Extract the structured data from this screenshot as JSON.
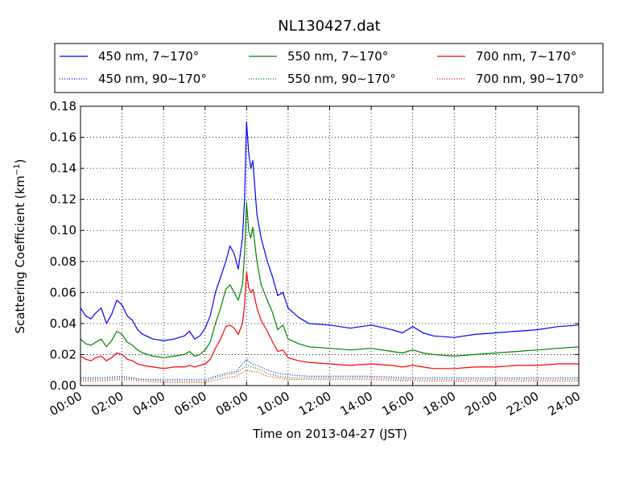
{
  "chart_data": {
    "type": "line",
    "title": "NL130427.dat",
    "xlabel": "Time on 2013-04-27 (JST)",
    "ylabel_main": "Scattering Coefficient (km",
    "ylabel_sup": "−1",
    "ylabel_end": ")",
    "xlim": [
      0,
      24
    ],
    "ylim": [
      0,
      0.18
    ],
    "x_ticks": [
      0,
      2,
      4,
      6,
      8,
      10,
      12,
      14,
      16,
      18,
      20,
      22,
      24
    ],
    "x_tick_labels": [
      "00:00",
      "02:00",
      "04:00",
      "06:00",
      "08:00",
      "10:00",
      "12:00",
      "14:00",
      "16:00",
      "18:00",
      "20:00",
      "22:00",
      "24:00"
    ],
    "y_ticks": [
      0,
      0.02,
      0.04,
      0.06,
      0.08,
      0.1,
      0.12,
      0.14,
      0.16,
      0.18
    ],
    "y_tick_labels": [
      "0.00",
      "0.02",
      "0.04",
      "0.06",
      "0.08",
      "0.10",
      "0.12",
      "0.14",
      "0.16",
      "0.18"
    ],
    "grid": true,
    "legend_position": "top",
    "series": [
      {
        "name": "450 nm, 7∼170°",
        "color": "#0000ff",
        "style": "solid",
        "x": [
          0,
          0.25,
          0.5,
          0.75,
          1,
          1.25,
          1.5,
          1.75,
          2,
          2.25,
          2.5,
          2.75,
          3,
          3.5,
          4,
          4.5,
          5,
          5.25,
          5.5,
          5.75,
          6,
          6.25,
          6.5,
          6.75,
          7,
          7.2,
          7.4,
          7.6,
          7.8,
          7.9,
          8,
          8.1,
          8.2,
          8.3,
          8.5,
          8.7,
          9,
          9.25,
          9.5,
          9.75,
          10,
          10.5,
          11,
          12,
          13,
          14,
          15,
          15.5,
          16,
          16.5,
          17,
          18,
          19,
          20,
          21,
          22,
          23,
          24
        ],
        "y": [
          0.05,
          0.045,
          0.043,
          0.047,
          0.05,
          0.04,
          0.046,
          0.055,
          0.052,
          0.045,
          0.042,
          0.036,
          0.033,
          0.03,
          0.029,
          0.03,
          0.032,
          0.035,
          0.03,
          0.032,
          0.037,
          0.045,
          0.06,
          0.07,
          0.08,
          0.09,
          0.085,
          0.075,
          0.095,
          0.12,
          0.17,
          0.15,
          0.14,
          0.145,
          0.11,
          0.095,
          0.08,
          0.07,
          0.058,
          0.06,
          0.05,
          0.044,
          0.04,
          0.039,
          0.037,
          0.039,
          0.036,
          0.034,
          0.038,
          0.034,
          0.032,
          0.031,
          0.033,
          0.034,
          0.035,
          0.036,
          0.038,
          0.039
        ]
      },
      {
        "name": "550 nm, 7∼170°",
        "color": "#008000",
        "style": "solid",
        "x": [
          0,
          0.25,
          0.5,
          0.75,
          1,
          1.25,
          1.5,
          1.75,
          2,
          2.25,
          2.5,
          2.75,
          3,
          3.5,
          4,
          4.5,
          5,
          5.25,
          5.5,
          5.75,
          6,
          6.25,
          6.5,
          6.75,
          7,
          7.2,
          7.4,
          7.6,
          7.8,
          7.9,
          8,
          8.1,
          8.2,
          8.3,
          8.5,
          8.7,
          9,
          9.25,
          9.5,
          9.75,
          10,
          10.5,
          11,
          12,
          13,
          14,
          15,
          15.5,
          16,
          16.5,
          17,
          18,
          19,
          20,
          21,
          22,
          23,
          24
        ],
        "y": [
          0.03,
          0.027,
          0.026,
          0.028,
          0.03,
          0.025,
          0.029,
          0.035,
          0.033,
          0.028,
          0.026,
          0.023,
          0.021,
          0.019,
          0.018,
          0.019,
          0.02,
          0.022,
          0.019,
          0.02,
          0.023,
          0.028,
          0.04,
          0.05,
          0.062,
          0.065,
          0.06,
          0.055,
          0.065,
          0.085,
          0.118,
          0.1,
          0.095,
          0.102,
          0.08,
          0.065,
          0.055,
          0.047,
          0.036,
          0.039,
          0.03,
          0.027,
          0.025,
          0.024,
          0.023,
          0.024,
          0.022,
          0.021,
          0.023,
          0.021,
          0.02,
          0.019,
          0.02,
          0.021,
          0.022,
          0.023,
          0.024,
          0.025
        ]
      },
      {
        "name": "700 nm, 7∼170°",
        "color": "#ff0000",
        "style": "solid",
        "x": [
          0,
          0.25,
          0.5,
          0.75,
          1,
          1.25,
          1.5,
          1.75,
          2,
          2.25,
          2.5,
          2.75,
          3,
          3.5,
          4,
          4.5,
          5,
          5.25,
          5.5,
          5.75,
          6,
          6.25,
          6.5,
          6.75,
          7,
          7.2,
          7.4,
          7.6,
          7.8,
          7.9,
          8,
          8.1,
          8.2,
          8.3,
          8.5,
          8.7,
          9,
          9.25,
          9.5,
          9.75,
          10,
          10.5,
          11,
          12,
          13,
          14,
          15,
          15.5,
          16,
          16.5,
          17,
          18,
          19,
          20,
          21,
          22,
          23,
          24
        ],
        "y": [
          0.019,
          0.017,
          0.016,
          0.018,
          0.019,
          0.016,
          0.018,
          0.021,
          0.02,
          0.017,
          0.016,
          0.014,
          0.013,
          0.012,
          0.011,
          0.012,
          0.012,
          0.013,
          0.012,
          0.013,
          0.014,
          0.017,
          0.024,
          0.03,
          0.038,
          0.039,
          0.037,
          0.033,
          0.04,
          0.052,
          0.073,
          0.063,
          0.06,
          0.062,
          0.05,
          0.042,
          0.035,
          0.028,
          0.022,
          0.023,
          0.018,
          0.016,
          0.015,
          0.014,
          0.013,
          0.014,
          0.013,
          0.012,
          0.013,
          0.012,
          0.011,
          0.011,
          0.012,
          0.012,
          0.013,
          0.013,
          0.014,
          0.014
        ]
      },
      {
        "name": "450 nm, 90∼170°",
        "color": "#0000ff",
        "style": "dotted",
        "x": [
          0,
          1,
          2,
          3,
          4,
          5,
          6,
          7,
          7.5,
          8,
          8.25,
          8.5,
          9,
          9.5,
          10,
          11,
          12,
          14,
          16,
          18,
          20,
          22,
          24
        ],
        "y": [
          0.005,
          0.005,
          0.006,
          0.004,
          0.004,
          0.004,
          0.004,
          0.008,
          0.009,
          0.017,
          0.014,
          0.013,
          0.01,
          0.008,
          0.007,
          0.006,
          0.006,
          0.006,
          0.005,
          0.005,
          0.005,
          0.005,
          0.005
        ]
      },
      {
        "name": "550 nm, 90∼170°",
        "color": "#008000",
        "style": "dotted",
        "x": [
          0,
          1,
          2,
          3,
          4,
          5,
          6,
          7,
          7.5,
          8,
          8.25,
          8.5,
          9,
          9.5,
          10,
          11,
          12,
          14,
          16,
          18,
          20,
          22,
          24
        ],
        "y": [
          0.004,
          0.004,
          0.005,
          0.004,
          0.003,
          0.003,
          0.003,
          0.007,
          0.008,
          0.013,
          0.012,
          0.011,
          0.008,
          0.006,
          0.005,
          0.005,
          0.005,
          0.005,
          0.004,
          0.004,
          0.004,
          0.004,
          0.004
        ]
      },
      {
        "name": "700 nm, 90∼170°",
        "color": "#ff0000",
        "style": "dotted",
        "x": [
          0,
          1,
          2,
          3,
          4,
          5,
          6,
          7,
          7.5,
          8,
          8.25,
          8.5,
          9,
          9.5,
          10,
          11,
          12,
          14,
          16,
          18,
          20,
          22,
          24
        ],
        "y": [
          0.003,
          0.003,
          0.004,
          0.003,
          0.002,
          0.002,
          0.002,
          0.005,
          0.006,
          0.01,
          0.009,
          0.009,
          0.006,
          0.005,
          0.004,
          0.004,
          0.004,
          0.004,
          0.003,
          0.003,
          0.003,
          0.003,
          0.003
        ]
      }
    ]
  }
}
